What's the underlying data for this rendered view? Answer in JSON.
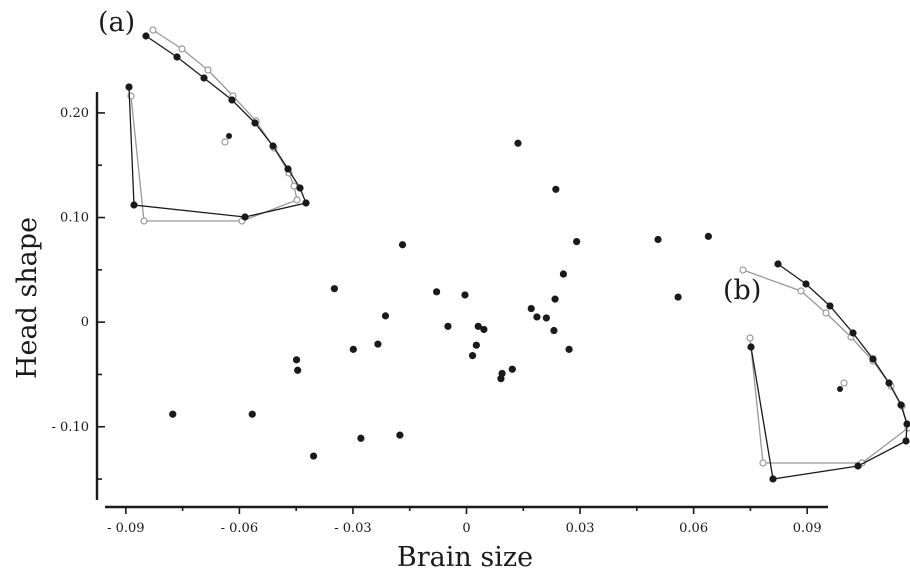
{
  "chart_data": {
    "type": "scatter",
    "xlabel": "Brain size",
    "ylabel": "Head shape",
    "xlim": [
      -0.0955,
      0.0955
    ],
    "ylim": [
      -0.17,
      0.22
    ],
    "x_ticks": [
      {
        "value": -0.09,
        "label": "- 0.09"
      },
      {
        "value": -0.06,
        "label": "- 0.06"
      },
      {
        "value": -0.03,
        "label": "- 0.03"
      },
      {
        "value": 0,
        "label": "0"
      },
      {
        "value": 0.03,
        "label": "0.03"
      },
      {
        "value": 0.06,
        "label": "0.06"
      },
      {
        "value": 0.09,
        "label": "0.09"
      }
    ],
    "y_ticks": [
      {
        "value": 0.2,
        "label": "0.20"
      },
      {
        "value": 0.1,
        "label": "0.10"
      },
      {
        "value": 0,
        "label": "0"
      },
      {
        "value": -0.1,
        "label": "- 0.10"
      }
    ],
    "points": [
      {
        "x": -0.0776,
        "y": -0.088
      },
      {
        "x": -0.0566,
        "y": -0.088
      },
      {
        "x": -0.0449,
        "y": -0.036
      },
      {
        "x": -0.0446,
        "y": -0.046
      },
      {
        "x": -0.0404,
        "y": -0.128
      },
      {
        "x": -0.0349,
        "y": 0.032
      },
      {
        "x": -0.0299,
        "y": -0.026
      },
      {
        "x": -0.0279,
        "y": -0.111
      },
      {
        "x": -0.0234,
        "y": -0.021
      },
      {
        "x": -0.0214,
        "y": 0.006
      },
      {
        "x": -0.0176,
        "y": -0.108
      },
      {
        "x": -0.0169,
        "y": 0.074
      },
      {
        "x": -0.0079,
        "y": 0.029
      },
      {
        "x": -0.0049,
        "y": -0.004
      },
      {
        "x": -0.0004,
        "y": 0.026
      },
      {
        "x": 0.0016,
        "y": -0.032
      },
      {
        "x": 0.0026,
        "y": -0.022
      },
      {
        "x": 0.0031,
        "y": -0.004
      },
      {
        "x": 0.0046,
        "y": -0.007
      },
      {
        "x": 0.0091,
        "y": -0.054
      },
      {
        "x": 0.0094,
        "y": -0.049
      },
      {
        "x": 0.0121,
        "y": -0.045
      },
      {
        "x": 0.0136,
        "y": 0.171
      },
      {
        "x": 0.0171,
        "y": 0.013
      },
      {
        "x": 0.0186,
        "y": 0.005
      },
      {
        "x": 0.0211,
        "y": 0.004
      },
      {
        "x": 0.0231,
        "y": -0.008
      },
      {
        "x": 0.0234,
        "y": 0.022
      },
      {
        "x": 0.0236,
        "y": 0.127
      },
      {
        "x": 0.0256,
        "y": 0.046
      },
      {
        "x": 0.0271,
        "y": -0.026
      },
      {
        "x": 0.0291,
        "y": 0.077
      },
      {
        "x": 0.0506,
        "y": 0.079
      },
      {
        "x": 0.0559,
        "y": 0.024
      },
      {
        "x": 0.0639,
        "y": 0.082
      }
    ],
    "insets": [
      {
        "label": "(a)",
        "position": "top-left"
      },
      {
        "label": "(b)",
        "position": "right"
      }
    ]
  },
  "colors": {
    "point": "#1a1a1a",
    "axis": "#1a1a1a",
    "inset_dark": "#1a1a1a",
    "inset_light": "#999999"
  }
}
